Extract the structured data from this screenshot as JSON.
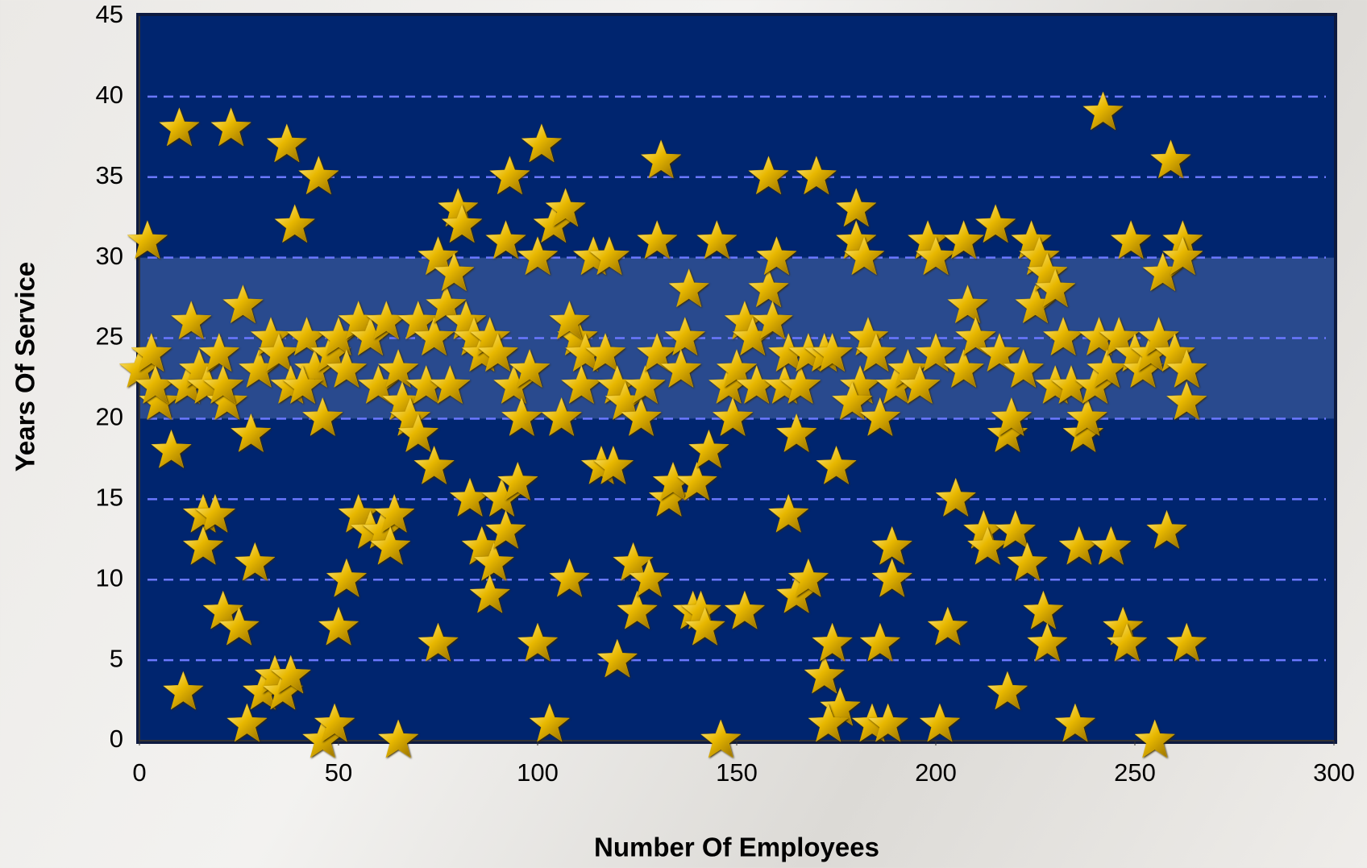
{
  "chart_data": {
    "type": "scatter",
    "x_label": "Number Of Employees",
    "y_label": "Years Of Service",
    "xlim": [
      0,
      300
    ],
    "xticks": [
      0,
      50,
      100,
      150,
      200,
      250,
      300
    ],
    "ylim": [
      0,
      45
    ],
    "yticks": [
      0,
      5,
      10,
      15,
      20,
      25,
      30,
      35,
      40,
      45
    ],
    "grid": true,
    "highlight_band": [
      20,
      30
    ],
    "color": "#e0b000",
    "x": [
      2,
      10,
      23,
      37,
      45,
      39,
      0,
      3,
      5,
      8,
      4,
      13,
      12,
      15,
      17,
      20,
      22,
      21,
      26,
      28,
      16,
      19,
      16,
      29,
      21,
      25,
      11,
      27,
      31,
      34,
      36,
      38,
      30,
      33,
      35,
      38,
      42,
      44,
      41,
      46,
      48,
      50,
      52,
      55,
      58,
      60,
      62,
      65,
      66,
      68,
      70,
      72,
      70,
      74,
      74,
      75,
      77,
      79,
      80,
      81,
      78,
      82,
      84,
      86,
      88,
      90,
      92,
      93,
      55,
      58,
      61,
      64,
      63,
      52,
      50,
      46,
      49,
      65,
      75,
      83,
      86,
      89,
      88,
      91,
      92,
      95,
      94,
      96,
      98,
      100,
      101,
      104,
      107,
      106,
      110,
      108,
      112,
      111,
      114,
      118,
      116,
      119,
      117,
      120,
      122,
      124,
      126,
      127,
      120,
      125,
      128,
      100,
      108,
      103,
      130,
      131,
      130,
      133,
      134,
      137,
      136,
      138,
      140,
      139,
      141,
      142,
      143,
      145,
      148,
      150,
      152,
      154,
      155,
      149,
      146,
      152,
      158,
      158,
      159,
      160,
      162,
      163,
      163,
      165,
      165,
      166,
      168,
      168,
      170,
      172,
      174,
      175,
      172,
      174,
      176,
      173,
      180,
      180,
      181,
      179,
      182,
      183,
      185,
      186,
      186,
      189,
      189,
      184,
      188,
      190,
      193,
      196,
      198,
      200,
      200,
      203,
      201,
      205,
      207,
      207,
      208,
      210,
      212,
      213,
      215,
      216,
      218,
      219,
      220,
      222,
      223,
      218,
      224,
      225,
      226,
      228,
      227,
      228,
      230,
      230,
      232,
      234,
      235,
      236,
      237,
      238,
      240,
      242,
      241,
      243,
      244,
      246,
      247,
      248,
      249,
      250,
      252,
      254,
      256,
      255,
      257,
      258,
      259,
      260,
      262,
      263,
      263,
      263,
      262
    ],
    "values": [
      31,
      38,
      38,
      37,
      35,
      32,
      23,
      24,
      21,
      18,
      22,
      26,
      22,
      23,
      22,
      24,
      21,
      22,
      27,
      19,
      14,
      14,
      12,
      11,
      8,
      7,
      3,
      1,
      3,
      4,
      3,
      4,
      23,
      25,
      24,
      22,
      25,
      23,
      22,
      20,
      24,
      25,
      23,
      26,
      25,
      22,
      26,
      23,
      21,
      20,
      19,
      22,
      26,
      25,
      17,
      30,
      27,
      29,
      33,
      32,
      22,
      26,
      25,
      24,
      25,
      24,
      31,
      35,
      14,
      13,
      13,
      14,
      12,
      10,
      7,
      0,
      1,
      0,
      6,
      15,
      12,
      11,
      9,
      15,
      13,
      16,
      22,
      20,
      23,
      30,
      37,
      32,
      33,
      20,
      25,
      26,
      24,
      22,
      30,
      30,
      17,
      17,
      24,
      22,
      21,
      11,
      20,
      22,
      5,
      8,
      10,
      6,
      10,
      1,
      24,
      36,
      31,
      15,
      16,
      25,
      23,
      28,
      16,
      8,
      8,
      7,
      18,
      31,
      22,
      23,
      26,
      25,
      22,
      20,
      0,
      8,
      35,
      28,
      26,
      30,
      22,
      24,
      14,
      19,
      9,
      22,
      24,
      10,
      35,
      24,
      24,
      17,
      4,
      6,
      2,
      1,
      33,
      31,
      22,
      21,
      30,
      25,
      24,
      20,
      6,
      12,
      10,
      1,
      1,
      22,
      23,
      22,
      31,
      30,
      24,
      7,
      1,
      15,
      31,
      23,
      27,
      25,
      13,
      12,
      32,
      24,
      19,
      20,
      13,
      23,
      11,
      3,
      31,
      27,
      30,
      29,
      8,
      6,
      28,
      22,
      25,
      22,
      1,
      12,
      19,
      20,
      22,
      39,
      25,
      23,
      12,
      25,
      7,
      6,
      31,
      24,
      23,
      24,
      25,
      0,
      29,
      13,
      36,
      24,
      31,
      23,
      21,
      6,
      30
    ]
  }
}
